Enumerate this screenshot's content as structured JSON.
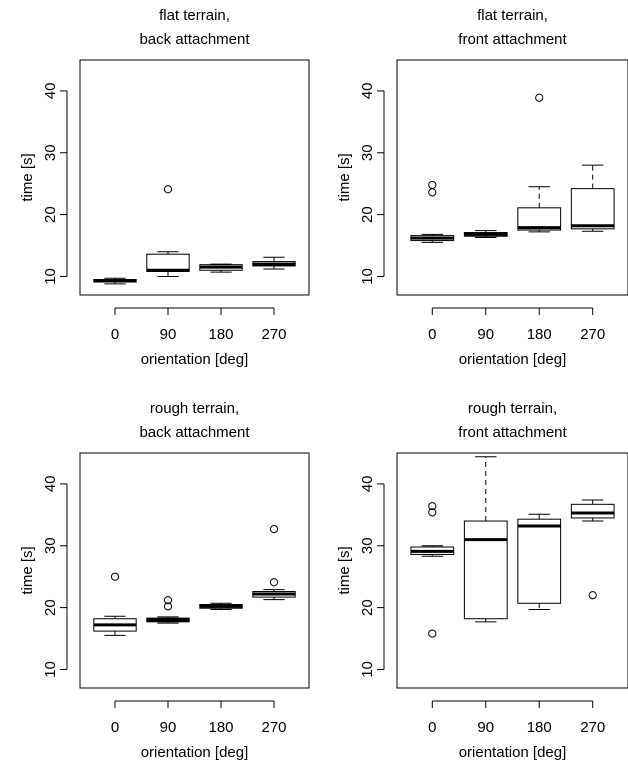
{
  "chart_data": [
    {
      "type": "box",
      "title_lines": [
        "flat terrain,",
        "back attachment"
      ],
      "xlabel": "orientation [deg]",
      "ylabel": "time [s]",
      "ylim": [
        7,
        45
      ],
      "yticks": [
        10,
        20,
        30,
        40
      ],
      "categories": [
        "0",
        "90",
        "180",
        "270"
      ],
      "boxes": [
        {
          "min": 8.8,
          "q1": 9.1,
          "median": 9.3,
          "q3": 9.5,
          "max": 9.7,
          "outliers": []
        },
        {
          "min": 10.0,
          "q1": 10.8,
          "median": 11.0,
          "q3": 13.6,
          "max": 14.0,
          "outliers": [
            24.1
          ]
        },
        {
          "min": 10.7,
          "q1": 11.0,
          "median": 11.5,
          "q3": 11.9,
          "max": 12.0,
          "outliers": []
        },
        {
          "min": 11.2,
          "q1": 11.7,
          "median": 12.0,
          "q3": 12.4,
          "max": 13.1,
          "outliers": []
        }
      ]
    },
    {
      "type": "box",
      "title_lines": [
        "flat terrain,",
        "front attachment"
      ],
      "xlabel": "orientation [deg]",
      "ylabel": "time [s]",
      "ylim": [
        7,
        45
      ],
      "yticks": [
        10,
        20,
        30,
        40
      ],
      "categories": [
        "0",
        "90",
        "180",
        "270"
      ],
      "boxes": [
        {
          "min": 15.5,
          "q1": 15.8,
          "median": 16.2,
          "q3": 16.6,
          "max": 16.8,
          "outliers": [
            23.6,
            24.8
          ]
        },
        {
          "min": 16.3,
          "q1": 16.5,
          "median": 16.8,
          "q3": 17.1,
          "max": 17.4,
          "outliers": []
        },
        {
          "min": 17.2,
          "q1": 17.5,
          "median": 17.9,
          "q3": 21.1,
          "max": 24.5,
          "outliers": [
            38.9
          ]
        },
        {
          "min": 17.3,
          "q1": 17.7,
          "median": 18.2,
          "q3": 24.2,
          "max": 28.0,
          "outliers": []
        }
      ]
    },
    {
      "type": "box",
      "title_lines": [
        "rough terrain,",
        "back attachment"
      ],
      "xlabel": "orientation [deg]",
      "ylabel": "time [s]",
      "ylim": [
        7,
        45
      ],
      "yticks": [
        10,
        20,
        30,
        40
      ],
      "categories": [
        "0",
        "90",
        "180",
        "270"
      ],
      "boxes": [
        {
          "min": 15.5,
          "q1": 16.2,
          "median": 17.2,
          "q3": 18.2,
          "max": 18.6,
          "outliers": [
            25.0
          ]
        },
        {
          "min": 17.5,
          "q1": 17.7,
          "median": 18.0,
          "q3": 18.3,
          "max": 18.5,
          "outliers": [
            20.2,
            21.2
          ]
        },
        {
          "min": 19.7,
          "q1": 19.9,
          "median": 20.2,
          "q3": 20.5,
          "max": 20.7,
          "outliers": []
        },
        {
          "min": 21.3,
          "q1": 21.7,
          "median": 22.2,
          "q3": 22.6,
          "max": 22.9,
          "outliers": [
            24.1,
            32.7
          ]
        }
      ]
    },
    {
      "type": "box",
      "title_lines": [
        "rough terrain,",
        "front attachment"
      ],
      "xlabel": "orientation [deg]",
      "ylabel": "time [s]",
      "ylim": [
        7,
        45
      ],
      "yticks": [
        10,
        20,
        30,
        40
      ],
      "categories": [
        "0",
        "90",
        "180",
        "270"
      ],
      "boxes": [
        {
          "min": 28.3,
          "q1": 28.6,
          "median": 29.1,
          "q3": 29.8,
          "max": 30.0,
          "outliers": [
            15.8,
            35.4,
            36.4
          ]
        },
        {
          "min": 17.7,
          "q1": 18.2,
          "median": 31.0,
          "q3": 34.0,
          "max": 44.4,
          "outliers": []
        },
        {
          "min": 19.7,
          "q1": 20.7,
          "median": 33.2,
          "q3": 34.3,
          "max": 35.1,
          "outliers": []
        },
        {
          "min": 34.0,
          "q1": 34.5,
          "median": 35.3,
          "q3": 36.7,
          "max": 37.4,
          "outliers": [
            22.0
          ]
        }
      ]
    }
  ]
}
